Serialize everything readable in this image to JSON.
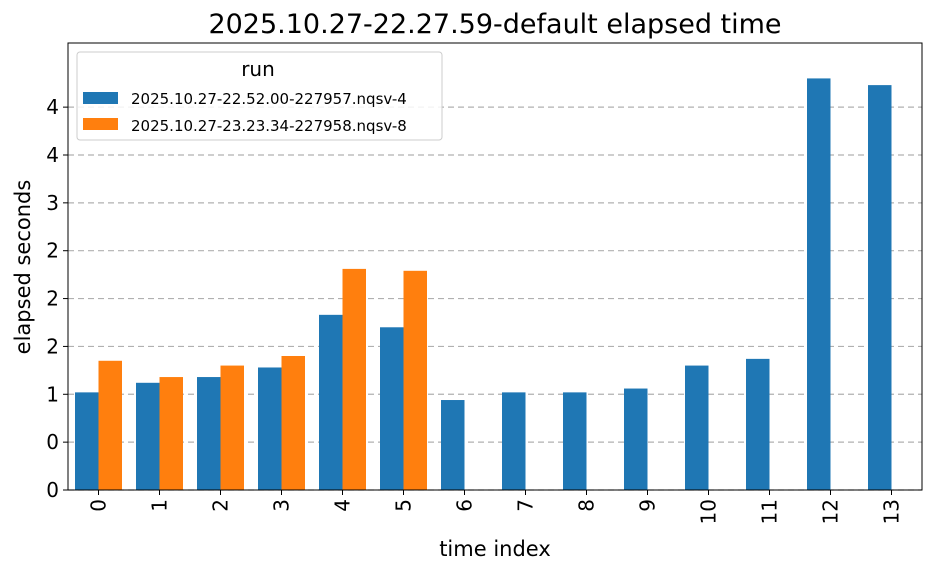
{
  "chart_data": {
    "type": "bar",
    "title": "2025.10.27-22.27.59-default elapsed time",
    "xlabel": "time index",
    "ylabel": "elapsed seconds",
    "categories": [
      "0",
      "1",
      "2",
      "3",
      "4",
      "5",
      "6",
      "7",
      "8",
      "9",
      "10",
      "11",
      "12",
      "13"
    ],
    "series": [
      {
        "name": "2025.10.27-22.52.00-227957.nqsv-4",
        "color": "#1f77b4",
        "values": [
          1.02,
          1.12,
          1.18,
          1.28,
          1.83,
          1.7,
          0.94,
          1.02,
          1.02,
          1.06,
          1.3,
          1.37,
          4.3,
          4.23
        ]
      },
      {
        "name": "2025.10.27-23.23.34-227958.nqsv-8",
        "color": "#ff7f0e",
        "values": [
          1.35,
          1.18,
          1.3,
          1.4,
          2.31,
          2.29,
          null,
          null,
          null,
          null,
          null,
          null,
          null,
          null
        ]
      }
    ],
    "ylim": [
      0,
      4.67
    ],
    "yticks": [
      0,
      0.5,
      1,
      1.5,
      2,
      2.5,
      3,
      3.5,
      4
    ],
    "ytick_labels": [
      "0",
      "0",
      "1",
      "2",
      "2",
      "2",
      "3",
      "4",
      "4"
    ],
    "grid": "y dashed",
    "legend": {
      "title": "run",
      "position": "top-left"
    }
  }
}
